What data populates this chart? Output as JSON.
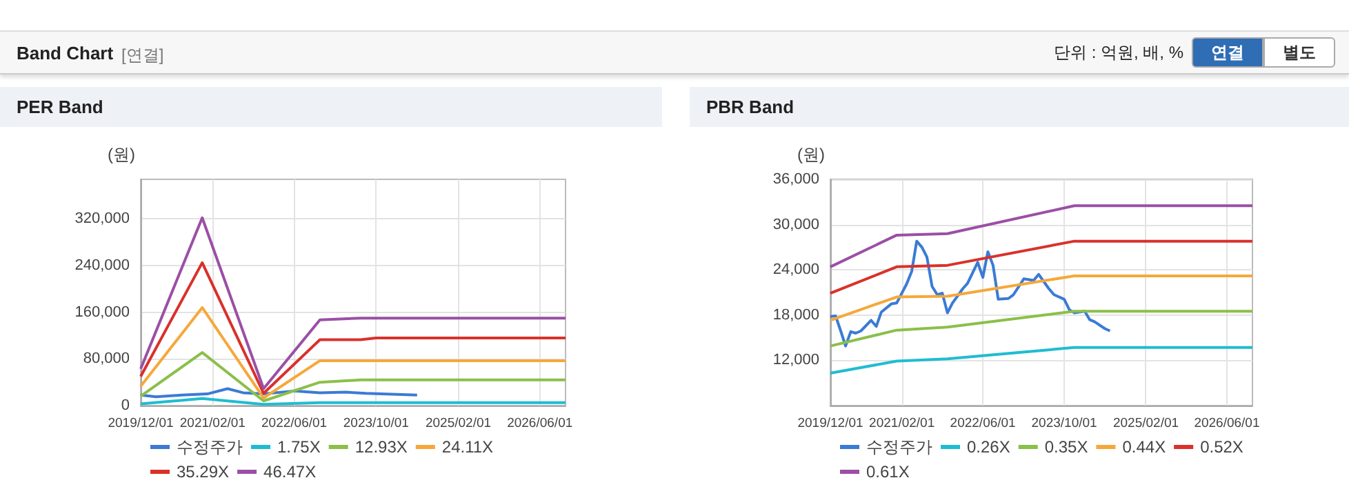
{
  "chart_data": [
    {
      "type": "other",
      "title": "Band Chart",
      "annotations": [
        "[연결]",
        "단위 : 억원, 배, %",
        "연결",
        "별도"
      ]
    },
    {
      "type": "line",
      "title": "PER Band",
      "ylabel": "(원)",
      "xlim": [
        "2019-12",
        "2026-11"
      ],
      "xticks": [
        {
          "value": "2019-12-01",
          "label": "2019/12/01"
        },
        {
          "value": "2021-02-01",
          "label": "2021/02/01"
        },
        {
          "value": "2022-06-01",
          "label": "2022/06/01"
        },
        {
          "value": "2023-10-01",
          "label": "2023/10/01"
        },
        {
          "value": "2025-02-01",
          "label": "2025/02/01"
        },
        {
          "value": "2026-06-01",
          "label": "2026/06/01"
        }
      ],
      "ylim": [
        0,
        388000
      ],
      "yticks": [
        {
          "value": 0,
          "label": "0"
        },
        {
          "value": 80000,
          "label": "80,000"
        },
        {
          "value": 160000,
          "label": "160,000"
        },
        {
          "value": 240000,
          "label": "240,000"
        },
        {
          "value": 320000,
          "label": "320,000"
        }
      ],
      "grid": true,
      "legend": "bottom",
      "marker": "none",
      "line_style": "solid",
      "series": [
        {
          "name": "수정주가",
          "color": "#3a7bd5",
          "x": [
            "2019-12",
            "2020-03",
            "2020-08",
            "2021-01",
            "2021-05",
            "2021-08",
            "2021-12",
            "2022-06",
            "2022-11",
            "2023-04",
            "2023-08",
            "2024-06"
          ],
          "values": [
            18000,
            15000,
            18000,
            20000,
            29000,
            22000,
            20000,
            25000,
            22000,
            23000,
            21000,
            18000
          ]
        },
        {
          "name": "1.75X",
          "color": "#1fbcd2",
          "x": [
            "2019-12",
            "2020-12",
            "2021-12",
            "2022-11",
            "2023-07",
            "2023-10",
            "2026-11"
          ],
          "values": [
            3000,
            12000,
            2000,
            5000,
            5000,
            5000,
            5000
          ]
        },
        {
          "name": "12.93X",
          "color": "#8bbf4a",
          "x": [
            "2019-12",
            "2020-12",
            "2021-12",
            "2022-11",
            "2023-07",
            "2023-10",
            "2026-11"
          ],
          "values": [
            16000,
            91000,
            8000,
            40000,
            44000,
            44000,
            44000
          ]
        },
        {
          "name": "24.11X",
          "color": "#f5a83a",
          "x": [
            "2019-12",
            "2020-12",
            "2021-12",
            "2022-11",
            "2023-07",
            "2023-10",
            "2026-11"
          ],
          "values": [
            33000,
            168000,
            13000,
            77000,
            77000,
            77000,
            77000
          ]
        },
        {
          "name": "35.29X",
          "color": "#d9312b",
          "x": [
            "2019-12",
            "2020-12",
            "2021-12",
            "2022-11",
            "2023-07",
            "2023-10",
            "2026-11"
          ],
          "values": [
            50000,
            245000,
            21000,
            113000,
            113000,
            116000,
            116000
          ]
        },
        {
          "name": "46.47X",
          "color": "#9b4fa5",
          "x": [
            "2019-12",
            "2020-12",
            "2021-12",
            "2022-11",
            "2023-07",
            "2023-10",
            "2026-11"
          ],
          "values": [
            63000,
            322000,
            29000,
            147000,
            150000,
            150000,
            150000
          ]
        }
      ]
    },
    {
      "type": "line",
      "title": "PBR Band",
      "ylabel": "(원)",
      "xlim": [
        "2019-12",
        "2026-11"
      ],
      "xticks": [
        {
          "value": "2019-12-01",
          "label": "2019/12/01"
        },
        {
          "value": "2021-02-01",
          "label": "2021/02/01"
        },
        {
          "value": "2022-06-01",
          "label": "2022/06/01"
        },
        {
          "value": "2023-10-01",
          "label": "2023/10/01"
        },
        {
          "value": "2025-02-01",
          "label": "2025/02/01"
        },
        {
          "value": "2026-06-01",
          "label": "2026/06/01"
        }
      ],
      "ylim": [
        6000,
        36000
      ],
      "yticks": [
        {
          "value": 12000,
          "label": "12,000"
        },
        {
          "value": 18000,
          "label": "18,000"
        },
        {
          "value": 24000,
          "label": "24,000"
        },
        {
          "value": 30000,
          "label": "30,000"
        },
        {
          "value": 36000,
          "label": "36,000"
        }
      ],
      "grid": true,
      "legend": "bottom",
      "marker": "none",
      "line_style": "solid",
      "series": [
        {
          "name": "수정주가",
          "color": "#3a7bd5",
          "x": [
            "2019-12",
            "2020-01",
            "2020-02",
            "2020-03",
            "2020-04",
            "2020-05",
            "2020-06",
            "2020-08",
            "2020-09",
            "2020-10",
            "2020-12",
            "2021-01",
            "2021-03",
            "2021-04",
            "2021-05",
            "2021-06",
            "2021-07",
            "2021-08",
            "2021-09",
            "2021-10",
            "2021-11",
            "2021-12",
            "2022-02",
            "2022-03",
            "2022-05",
            "2022-06",
            "2022-07",
            "2022-08",
            "2022-09",
            "2022-11",
            "2022-12",
            "2023-02",
            "2023-04",
            "2023-05",
            "2023-07",
            "2023-08",
            "2023-10",
            "2023-11",
            "2023-12",
            "2024-02",
            "2024-03",
            "2024-04",
            "2024-06",
            "2024-07"
          ],
          "values": [
            17800,
            17900,
            15900,
            13900,
            15800,
            15600,
            15900,
            17300,
            16500,
            18400,
            19500,
            19600,
            22100,
            23800,
            27800,
            27000,
            25700,
            21800,
            20700,
            20900,
            18300,
            19600,
            21500,
            22200,
            25000,
            23000,
            26400,
            24600,
            20100,
            20200,
            20700,
            22800,
            22600,
            23400,
            21500,
            20700,
            20100,
            18700,
            18300,
            18500,
            17400,
            17100,
            16200,
            15900
          ]
        },
        {
          "name": "0.26X",
          "color": "#1fbcd2",
          "x": [
            "2019-12",
            "2021-01",
            "2021-11",
            "2023-12",
            "2026-11"
          ],
          "values": [
            10300,
            11900,
            12200,
            13700,
            13700
          ]
        },
        {
          "name": "0.35X",
          "color": "#8bbf4a",
          "x": [
            "2019-12",
            "2021-01",
            "2021-11",
            "2023-12",
            "2026-11"
          ],
          "values": [
            13900,
            16000,
            16400,
            18500,
            18500
          ]
        },
        {
          "name": "0.44X",
          "color": "#f5a83a",
          "x": [
            "2019-12",
            "2021-01",
            "2021-11",
            "2023-12",
            "2026-11"
          ],
          "values": [
            17300,
            20400,
            20500,
            23200,
            23200
          ]
        },
        {
          "name": "0.52X",
          "color": "#d9312b",
          "x": [
            "2019-12",
            "2021-01",
            "2021-11",
            "2023-12",
            "2026-11"
          ],
          "values": [
            20900,
            24400,
            24600,
            27800,
            27800
          ]
        },
        {
          "name": "0.61X",
          "color": "#9b4fa5",
          "x": [
            "2019-12",
            "2021-01",
            "2021-11",
            "2023-12",
            "2026-11"
          ],
          "values": [
            24400,
            28600,
            28800,
            32500,
            32500
          ]
        }
      ]
    }
  ]
}
